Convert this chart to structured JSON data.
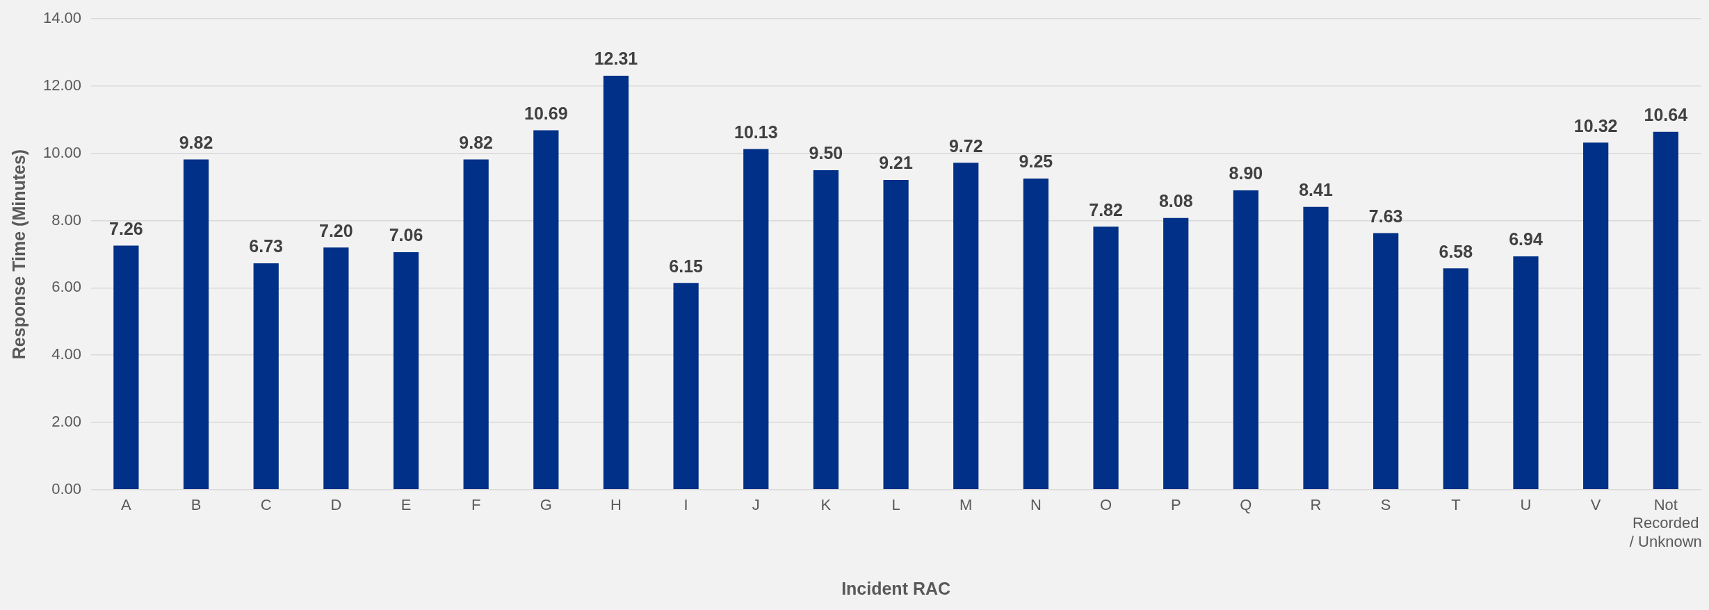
{
  "chart_data": {
    "type": "bar",
    "xlabel": "Incident RAC",
    "ylabel": "Response Time (Minutes)",
    "categories": [
      "A",
      "B",
      "C",
      "D",
      "E",
      "F",
      "G",
      "H",
      "I",
      "J",
      "K",
      "L",
      "M",
      "N",
      "O",
      "P",
      "Q",
      "R",
      "S",
      "T",
      "U",
      "V",
      "Not Recorded / Unknown"
    ],
    "series": [
      {
        "color": "#003087",
        "values": [
          7.26,
          9.82,
          6.73,
          7.2,
          7.06,
          9.82,
          10.69,
          12.31,
          6.15,
          10.13,
          9.5,
          9.21,
          9.72,
          9.25,
          7.82,
          8.08,
          8.9,
          8.41,
          7.63,
          6.58,
          6.94,
          10.32,
          10.64
        ],
        "value_labels": [
          "7.26",
          "9.82",
          "6.73",
          "7.20",
          "7.06",
          "9.82",
          "10.69",
          "12.31",
          "6.15",
          "10.13",
          "9.50",
          "9.21",
          "9.72",
          "9.25",
          "7.82",
          "8.08",
          "8.90",
          "8.41",
          "7.63",
          "6.58",
          "6.94",
          "10.32",
          "10.64"
        ]
      }
    ],
    "ylim": [
      0,
      14
    ],
    "yticks": [
      {
        "value": 0,
        "label": "0.00"
      },
      {
        "value": 2,
        "label": "2.00"
      },
      {
        "value": 4,
        "label": "4.00"
      },
      {
        "value": 6,
        "label": "6.00"
      },
      {
        "value": 8,
        "label": "8.00"
      },
      {
        "value": 10,
        "label": "10.00"
      },
      {
        "value": 12,
        "label": "12.00"
      },
      {
        "value": 14,
        "label": "14.00"
      }
    ],
    "grid": "y",
    "legend": false
  }
}
